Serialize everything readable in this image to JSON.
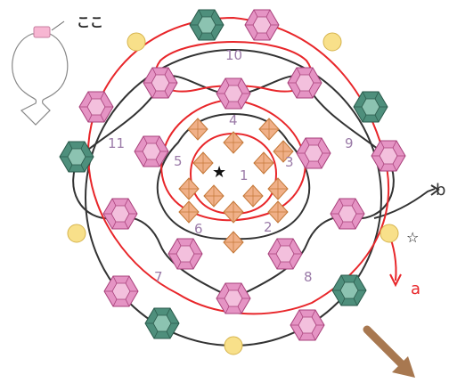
{
  "inset": {
    "label": "ここ"
  },
  "region_numbers": [
    "1",
    "2",
    "3",
    "4",
    "5",
    "6",
    "7",
    "8",
    "9",
    "10",
    "11"
  ],
  "thread_labels": {
    "b": "b",
    "a": "a"
  },
  "markers": {
    "filled_star": "★",
    "open_star": "☆"
  },
  "colors": {
    "pink_bead": "#e594c4",
    "green_bead": "#4e8f7c",
    "orange_bead": "#f0b088",
    "yellow_bead": "#f8e08a",
    "red_thread": "#e8262a",
    "black_thread": "#333333",
    "arrow": "#a87850",
    "number_text": "#9b7ba8"
  }
}
